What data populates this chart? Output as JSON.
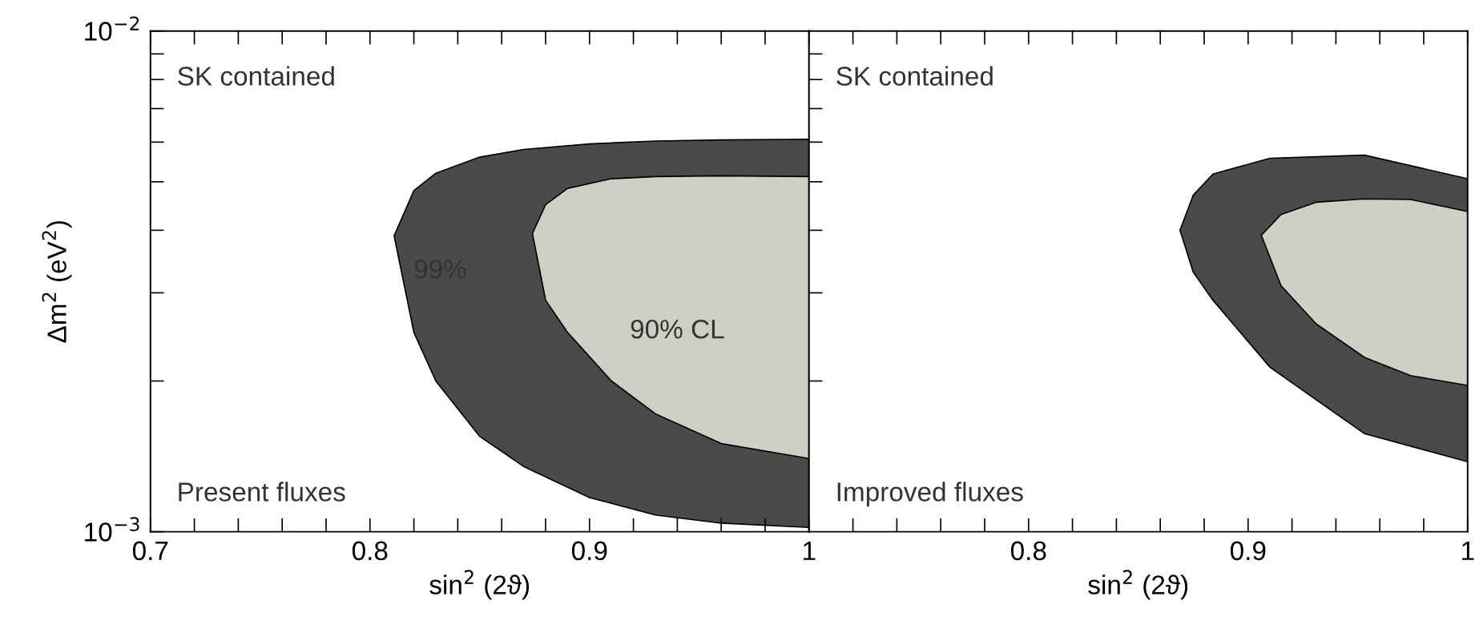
{
  "chart_data": [
    {
      "type": "area",
      "xlabel": "sin$^{2}$ (2ϑ)",
      "ylabel": "Δm$^{2}$ (eV$^{2}$)",
      "log": "y",
      "xlim": [
        0.7,
        1.0
      ],
      "ylim": [
        0.001,
        0.01
      ],
      "xticks": [
        0.7,
        0.8,
        0.9,
        {
          "value": 1.0,
          "label": "1"
        }
      ],
      "yticks": [
        {
          "value": 0.001,
          "label": "10$^{−3}$"
        },
        {
          "value": 0.01,
          "label": "10$^{−2}$"
        }
      ],
      "annotations": [
        "SK contained",
        "Present fluxes",
        "99%",
        "90% CL"
      ],
      "series": [
        {
          "color": "#4a4a4a",
          "x": [
            0.811,
            0.82,
            0.83,
            0.85,
            0.87,
            0.9,
            0.93,
            0.96,
            1.0,
            1.0,
            0.96,
            0.93,
            0.9,
            0.87,
            0.85,
            0.83,
            0.82
          ],
          "values": [
            0.0039,
            0.0048,
            0.0052,
            0.0056,
            0.0058,
            0.00595,
            0.00603,
            0.00606,
            0.00608,
            0.00102,
            0.00104,
            0.00108,
            0.00117,
            0.00135,
            0.00155,
            0.002,
            0.0025
          ]
        },
        {
          "color": "#cdd1c4",
          "x": [
            0.874,
            0.88,
            0.89,
            0.91,
            0.93,
            0.96,
            1.0,
            1.0,
            0.96,
            0.93,
            0.91,
            0.89,
            0.88
          ],
          "values": [
            0.00394,
            0.0045,
            0.00485,
            0.00507,
            0.00512,
            0.00514,
            0.00512,
            0.0014,
            0.0015,
            0.00172,
            0.002,
            0.0025,
            0.0029
          ]
        }
      ]
    },
    {
      "type": "area",
      "xlabel": "sin$^{2}$ (2ϑ)",
      "log": "y",
      "xlim": [
        0.7,
        1.0
      ],
      "ylim": [
        0.001,
        0.01
      ],
      "tick_labels": "x",
      "xticks": [
        0.8,
        0.9,
        {
          "value": 1.0,
          "label": "1"
        }
      ],
      "annotations": [
        "SK contained",
        "Improved fluxes"
      ],
      "series": [
        {
          "color": "#4a4a4a",
          "x": [
            0.869,
            0.875,
            0.884,
            0.91,
            0.953,
            1.0,
            1.0,
            0.953,
            0.91,
            0.884,
            0.875
          ],
          "values": [
            0.004,
            0.0047,
            0.00518,
            0.00557,
            0.00565,
            0.00507,
            0.00138,
            0.00157,
            0.00213,
            0.0029,
            0.0033
          ]
        },
        {
          "color": "#cdd1c4",
          "x": [
            0.906,
            0.915,
            0.931,
            0.953,
            0.974,
            1.0,
            1.0,
            0.974,
            0.953,
            0.931,
            0.915
          ],
          "values": [
            0.00391,
            0.0043,
            0.00455,
            0.00462,
            0.00461,
            0.00436,
            0.00196,
            0.00205,
            0.00223,
            0.0026,
            0.0031
          ]
        }
      ]
    }
  ]
}
